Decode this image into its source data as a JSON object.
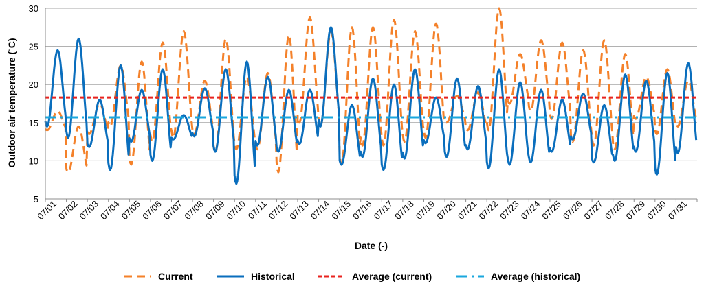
{
  "chart_data": {
    "type": "line",
    "title": "",
    "xlabel": "Date (-)",
    "ylabel": "Outdoor air temperature (˚C)",
    "ylim": [
      5,
      30
    ],
    "yticks": [
      5,
      10,
      15,
      20,
      25,
      30
    ],
    "categories": [
      "07/01",
      "07/02",
      "07/03",
      "07/04",
      "07/05",
      "07/06",
      "07/07",
      "07/08",
      "07/09",
      "07/10",
      "07/11",
      "07/12",
      "07/13",
      "07/14",
      "07/15",
      "07/16",
      "07/17",
      "07/18",
      "07/19",
      "07/20",
      "07/21",
      "07/22",
      "07/23",
      "07/24",
      "07/25",
      "07/26",
      "07/27",
      "07/28",
      "07/29",
      "07/30",
      "07/31"
    ],
    "grid": true,
    "legend_position": "bottom",
    "series": [
      {
        "name": "Current",
        "style": "dashed",
        "color": "#F4812A",
        "daily_min": [
          14.0,
          8.5,
          13.5,
          14.5,
          9.5,
          12.5,
          13.0,
          13.5,
          11.0,
          11.5,
          11.5,
          8.5,
          15.0,
          14.5,
          9.5,
          12.0,
          12.0,
          12.5,
          13.0,
          15.0,
          14.0,
          14.0,
          17.5,
          16.5,
          15.5,
          12.5,
          12.0,
          11.5,
          15.5,
          13.5,
          14.5
        ],
        "daily_max": [
          16.5,
          14.5,
          17.5,
          22.5,
          23.0,
          25.5,
          27.0,
          20.5,
          26.0,
          21.0,
          21.5,
          26.5,
          28.8,
          27.0,
          27.5,
          27.5,
          28.5,
          27.0,
          28.0,
          18.5,
          19.0,
          30.0,
          24.0,
          25.8,
          25.5,
          24.5,
          25.8,
          24.0,
          21.0,
          22.0,
          20.5
        ]
      },
      {
        "name": "Historical",
        "style": "solid",
        "color": "#0A6EBD",
        "daily_min": [
          14.5,
          13.0,
          11.8,
          8.8,
          12.5,
          10.0,
          12.8,
          13.2,
          11.2,
          7.0,
          12.0,
          11.2,
          12.2,
          14.5,
          9.5,
          10.5,
          8.8,
          10.3,
          12.3,
          10.5,
          11.5,
          9.0,
          9.5,
          9.8,
          11.2,
          12.8,
          9.8,
          10.0,
          11.2,
          8.2,
          11.0
        ],
        "daily_max": [
          24.5,
          26.0,
          18.0,
          22.5,
          19.3,
          22.0,
          16.0,
          19.5,
          22.0,
          23.0,
          21.0,
          19.3,
          19.3,
          27.5,
          17.3,
          20.8,
          20.0,
          22.0,
          18.3,
          20.8,
          19.8,
          22.0,
          20.3,
          19.3,
          18.0,
          18.8,
          17.3,
          21.3,
          20.5,
          21.5,
          22.8
        ]
      },
      {
        "name": "Average (current)",
        "style": "dashed-red",
        "color": "#E8231F",
        "constant": 18.3
      },
      {
        "name": "Average (historical)",
        "style": "dash-dot",
        "color": "#1AA7DE",
        "constant": 15.7
      }
    ]
  }
}
